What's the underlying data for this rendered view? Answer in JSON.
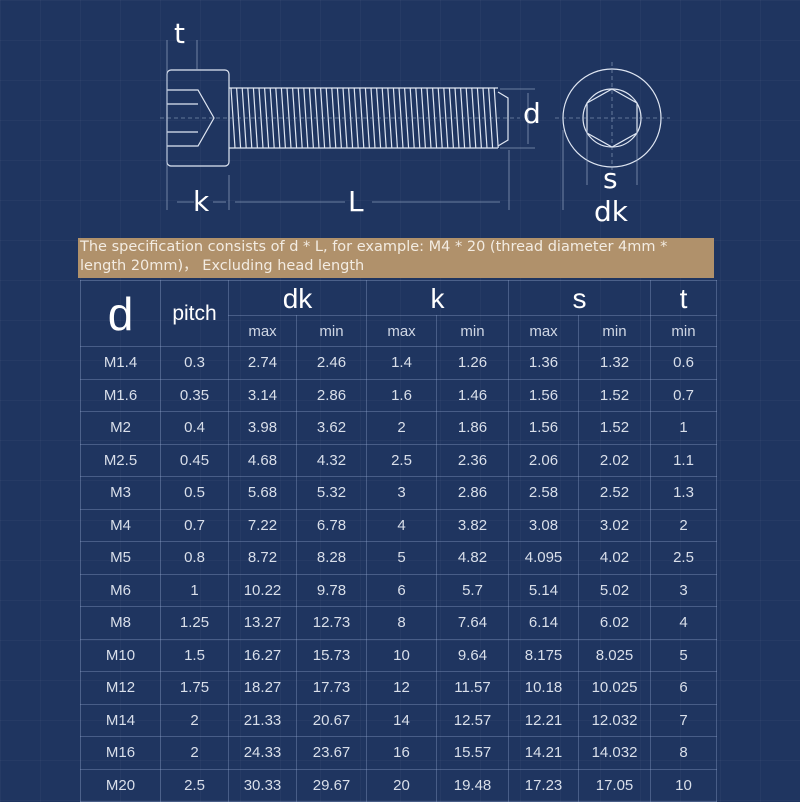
{
  "diagram": {
    "labels": {
      "t": "t",
      "k": "k",
      "L": "L",
      "d": "d",
      "s": "s",
      "dk": "dk"
    }
  },
  "banner": {
    "text": "The specification consists of d * L, for example: M4 * 20 (thread diameter 4mm * length 20mm)， Excluding head length"
  },
  "table": {
    "headers": {
      "d": "d",
      "pitch": "pitch",
      "dk": "dk",
      "k": "k",
      "s": "s",
      "t": "t"
    },
    "subheaders": [
      "max",
      "min",
      "max",
      "min",
      "max",
      "min",
      "min"
    ],
    "rows": [
      [
        "M1.4",
        "0.3",
        "2.74",
        "2.46",
        "1.4",
        "1.26",
        "1.36",
        "1.32",
        "0.6"
      ],
      [
        "M1.6",
        "0.35",
        "3.14",
        "2.86",
        "1.6",
        "1.46",
        "1.56",
        "1.52",
        "0.7"
      ],
      [
        "M2",
        "0.4",
        "3.98",
        "3.62",
        "2",
        "1.86",
        "1.56",
        "1.52",
        "1"
      ],
      [
        "M2.5",
        "0.45",
        "4.68",
        "4.32",
        "2.5",
        "2.36",
        "2.06",
        "2.02",
        "1.1"
      ],
      [
        "M3",
        "0.5",
        "5.68",
        "5.32",
        "3",
        "2.86",
        "2.58",
        "2.52",
        "1.3"
      ],
      [
        "M4",
        "0.7",
        "7.22",
        "6.78",
        "4",
        "3.82",
        "3.08",
        "3.02",
        "2"
      ],
      [
        "M5",
        "0.8",
        "8.72",
        "8.28",
        "5",
        "4.82",
        "4.095",
        "4.02",
        "2.5"
      ],
      [
        "M6",
        "1",
        "10.22",
        "9.78",
        "6",
        "5.7",
        "5.14",
        "5.02",
        "3"
      ],
      [
        "M8",
        "1.25",
        "13.27",
        "12.73",
        "8",
        "7.64",
        "6.14",
        "6.02",
        "4"
      ],
      [
        "M10",
        "1.5",
        "16.27",
        "15.73",
        "10",
        "9.64",
        "8.175",
        "8.025",
        "5"
      ],
      [
        "M12",
        "1.75",
        "18.27",
        "17.73",
        "12",
        "11.57",
        "10.18",
        "10.025",
        "6"
      ],
      [
        "M14",
        "2",
        "21.33",
        "20.67",
        "14",
        "12.57",
        "12.21",
        "12.032",
        "7"
      ],
      [
        "M16",
        "2",
        "24.33",
        "23.67",
        "16",
        "15.57",
        "14.21",
        "14.032",
        "8"
      ],
      [
        "M20",
        "2.5",
        "30.33",
        "29.67",
        "20",
        "19.48",
        "17.23",
        "17.05",
        "10"
      ]
    ]
  },
  "colors": {
    "background": "#1f3560",
    "banner": "#b0916b",
    "lines": "#dfe6f2"
  }
}
